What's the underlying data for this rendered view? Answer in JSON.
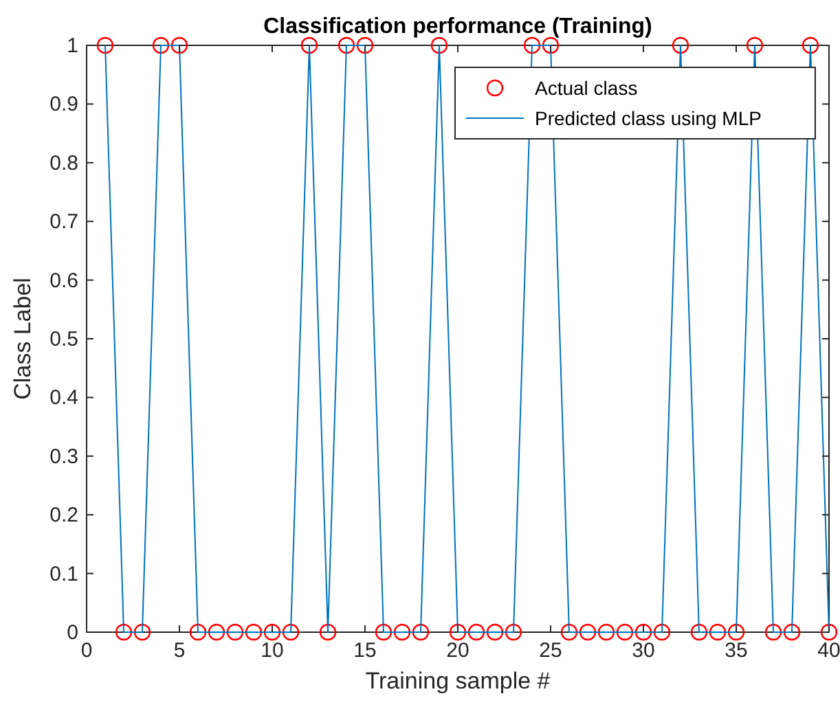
{
  "chart_data": {
    "type": "line",
    "title": "Classification performance (Training)",
    "xlabel": "Training sample #",
    "ylabel": "Class Label",
    "x": [
      1,
      2,
      3,
      4,
      5,
      6,
      7,
      8,
      9,
      10,
      11,
      12,
      13,
      14,
      15,
      16,
      17,
      18,
      19,
      20,
      21,
      22,
      23,
      24,
      25,
      26,
      27,
      28,
      29,
      30,
      31,
      32,
      33,
      34,
      35,
      36,
      37,
      38,
      39,
      40
    ],
    "series": [
      {
        "name": "Actual class",
        "type": "scatter",
        "color": "#ff0000",
        "marker": "circle",
        "values": [
          1,
          0,
          0,
          1,
          1,
          0,
          0,
          0,
          0,
          0,
          0,
          1,
          0,
          1,
          1,
          0,
          0,
          0,
          1,
          0,
          0,
          0,
          0,
          1,
          1,
          0,
          0,
          0,
          0,
          0,
          0,
          1,
          0,
          0,
          0,
          1,
          0,
          0,
          1,
          0
        ]
      },
      {
        "name": "Predicted class using MLP",
        "type": "line",
        "color": "#0072bd",
        "marker": "none",
        "line_style": "solid",
        "values": [
          1,
          0,
          0,
          1,
          1,
          0,
          0,
          0,
          0,
          0,
          0,
          1,
          0,
          1,
          1,
          0,
          0,
          0,
          1,
          0,
          0,
          0,
          0,
          1,
          1,
          0,
          0,
          0,
          0,
          0,
          0,
          1,
          0,
          0,
          0,
          1,
          0,
          0,
          1,
          0
        ]
      }
    ],
    "xlim": [
      0,
      40
    ],
    "xticks": [
      0,
      5,
      10,
      15,
      20,
      25,
      30,
      35,
      40
    ],
    "ylim": [
      0,
      1
    ],
    "yticks": [
      0,
      0.1,
      0.2,
      0.3,
      0.4,
      0.5,
      0.6,
      0.7,
      0.8,
      0.9,
      1
    ],
    "grid": false,
    "legend": "top right"
  }
}
